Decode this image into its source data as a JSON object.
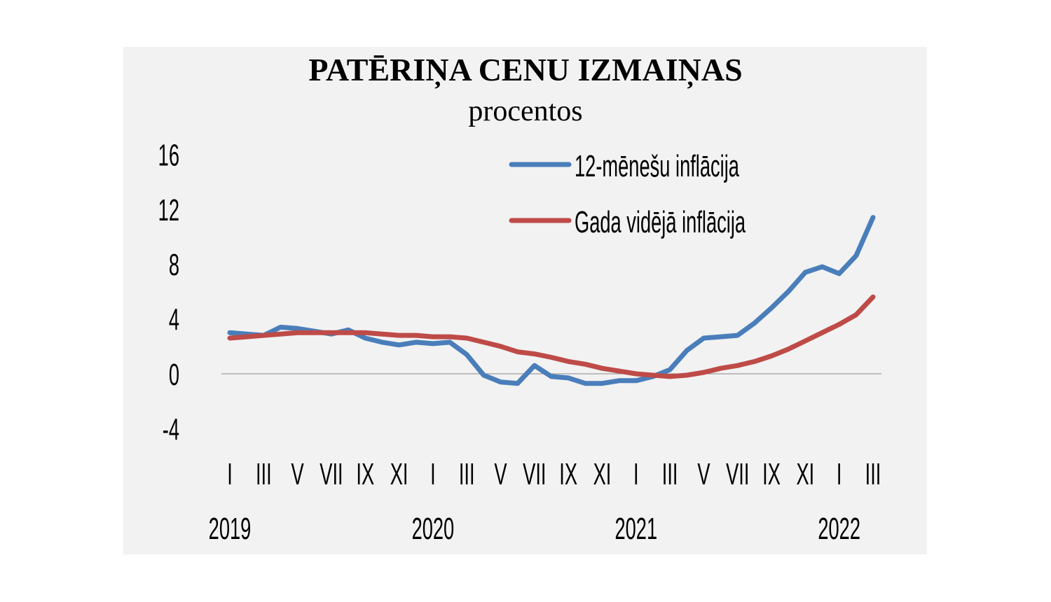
{
  "chart_data": {
    "type": "line",
    "title": "PATĒRIŅA CENU IZMAIŅAS",
    "subtitle": "procentos",
    "xlabel": "",
    "ylabel": "",
    "ylim": [
      -4,
      16
    ],
    "yticks": [
      "-4",
      "0",
      "4",
      "8",
      "12",
      "16"
    ],
    "ytick_values": [
      -4,
      0,
      4,
      8,
      12,
      16
    ],
    "x_month_labels": [
      "I",
      "III",
      "V",
      "VII",
      "IX",
      "XI",
      "I",
      "III",
      "V",
      "VII",
      "IX",
      "XI",
      "I",
      "III",
      "V",
      "VII",
      "IX",
      "XI",
      "I",
      "III"
    ],
    "x_year_labels": [
      "2019",
      "2020",
      "2021",
      "2022"
    ],
    "x": [
      "2019-01",
      "2019-02",
      "2019-03",
      "2019-04",
      "2019-05",
      "2019-06",
      "2019-07",
      "2019-08",
      "2019-09",
      "2019-10",
      "2019-11",
      "2019-12",
      "2020-01",
      "2020-02",
      "2020-03",
      "2020-04",
      "2020-05",
      "2020-06",
      "2020-07",
      "2020-08",
      "2020-09",
      "2020-10",
      "2020-11",
      "2020-12",
      "2021-01",
      "2021-02",
      "2021-03",
      "2021-04",
      "2021-05",
      "2021-06",
      "2021-07",
      "2021-08",
      "2021-09",
      "2021-10",
      "2021-11",
      "2021-12",
      "2022-01",
      "2022-02",
      "2022-03"
    ],
    "grid": false,
    "zero_line": true,
    "legend_placement": "top-right",
    "series": [
      {
        "name": "12-mēnešu inflācija",
        "color": "#4a7ebb",
        "values": [
          3.0,
          2.9,
          2.8,
          3.4,
          3.3,
          3.1,
          2.9,
          3.2,
          2.6,
          2.3,
          2.1,
          2.3,
          2.2,
          2.3,
          1.4,
          -0.1,
          -0.6,
          -0.7,
          0.6,
          -0.2,
          -0.3,
          -0.7,
          -0.7,
          -0.5,
          -0.5,
          -0.2,
          0.3,
          1.7,
          2.6,
          2.7,
          2.8,
          3.7,
          4.8,
          6.0,
          7.4,
          7.8,
          7.3,
          8.6,
          11.4
        ]
      },
      {
        "name": "Gada vidējā inflācija",
        "color": "#be4b48",
        "values": [
          2.6,
          2.7,
          2.8,
          2.9,
          3.0,
          3.0,
          3.0,
          3.0,
          3.0,
          2.9,
          2.8,
          2.8,
          2.7,
          2.7,
          2.6,
          2.3,
          2.0,
          1.6,
          1.45,
          1.2,
          0.9,
          0.7,
          0.4,
          0.2,
          0.0,
          -0.1,
          -0.2,
          -0.1,
          0.1,
          0.4,
          0.6,
          0.9,
          1.3,
          1.8,
          2.4,
          3.0,
          3.6,
          4.3,
          5.6
        ]
      }
    ],
    "background": "#f2f2f2"
  }
}
